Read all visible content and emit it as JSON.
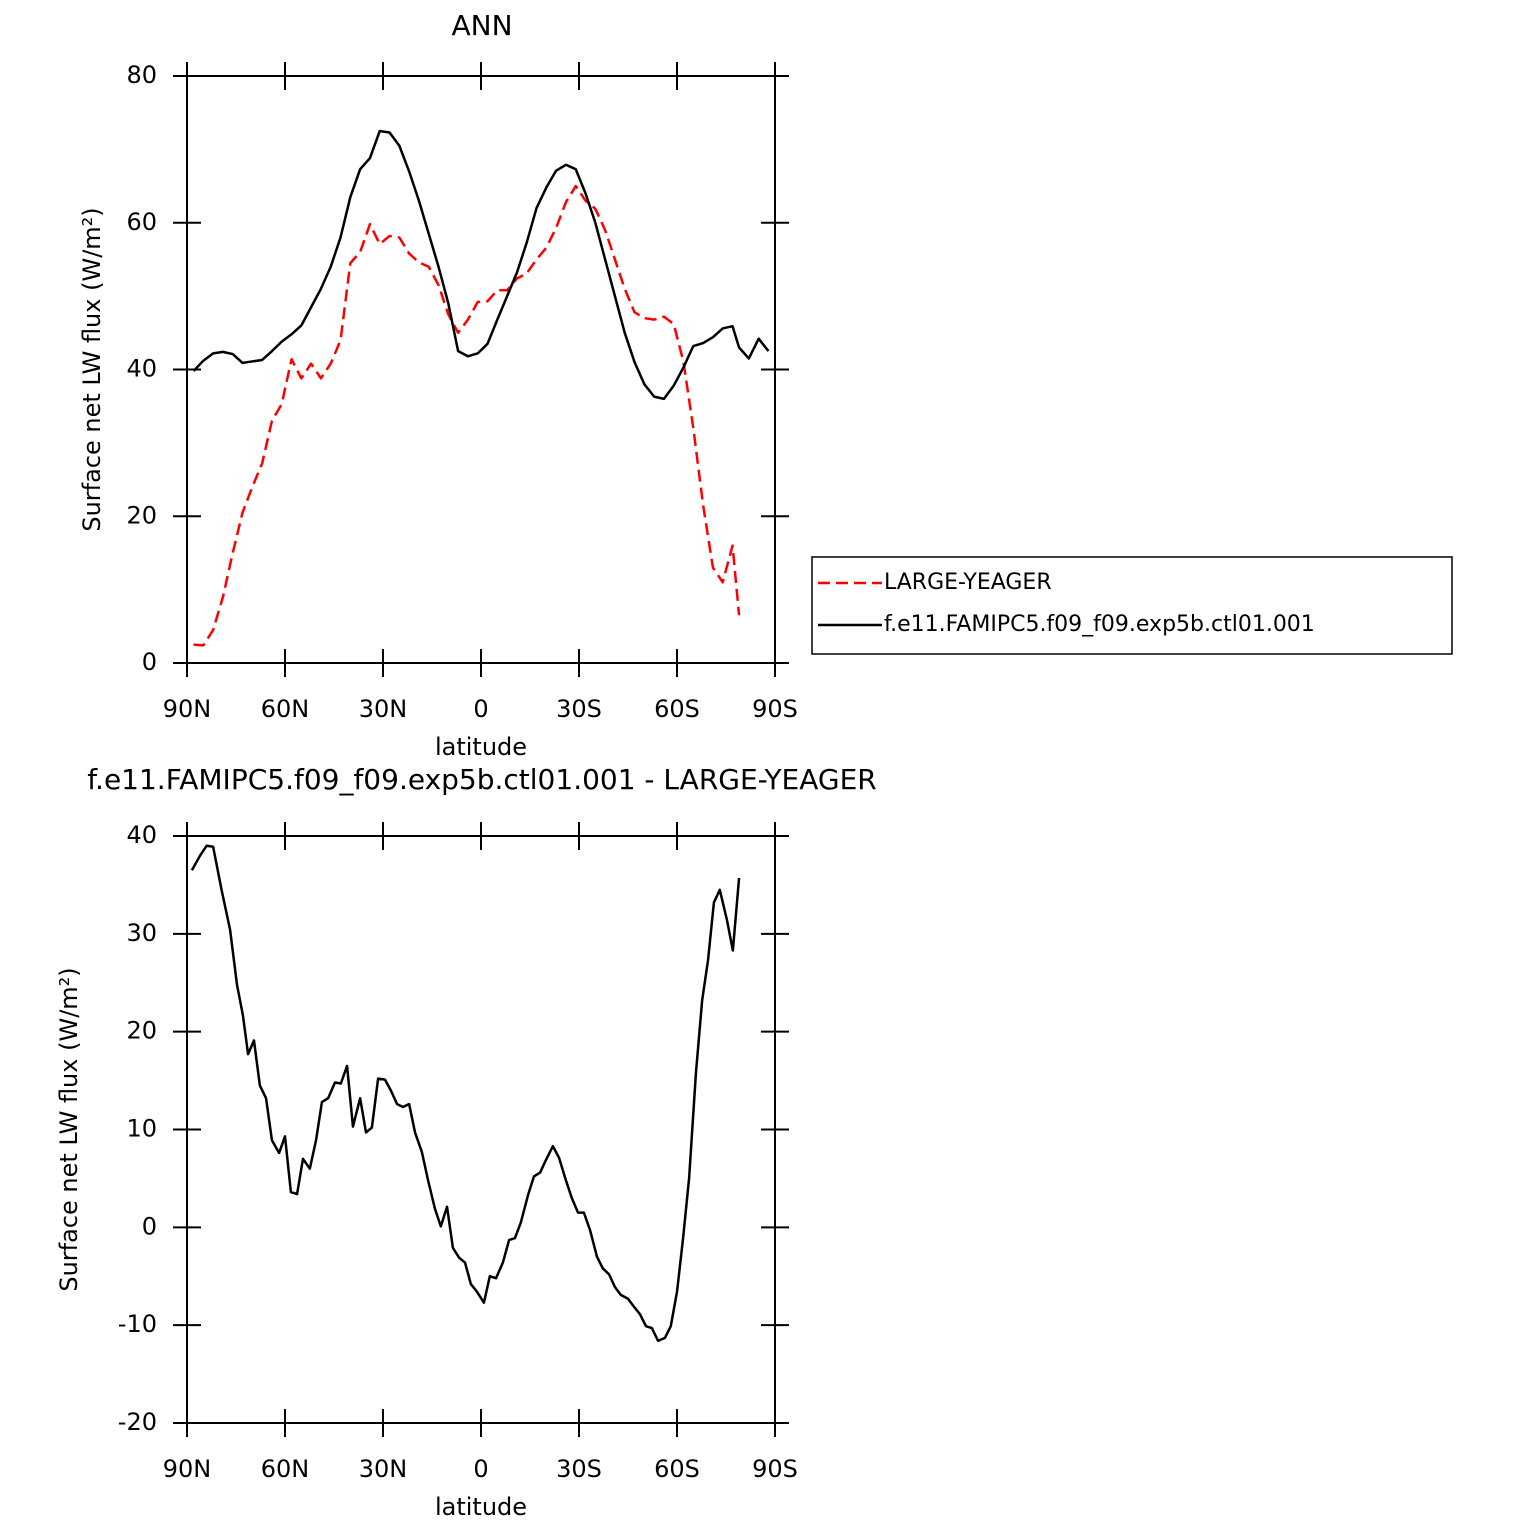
{
  "chart_data": [
    {
      "type": "line",
      "title": "ANN",
      "x_label": "latitude",
      "y_label": "Surface net LW flux (W/m²)",
      "x": [
        88,
        85,
        82,
        79,
        76,
        73,
        70,
        67,
        64,
        61,
        58,
        55,
        52,
        49,
        46,
        43,
        40,
        37,
        34,
        31,
        28,
        25,
        22,
        19,
        16,
        13,
        10,
        7,
        4,
        1,
        -2,
        -5,
        -8,
        -11,
        -14,
        -17,
        -20,
        -23,
        -26,
        -29,
        -32,
        -35,
        -38,
        -41,
        -44,
        -47,
        -50,
        -53,
        -56,
        -59,
        -62,
        -65,
        -68,
        -71,
        -74,
        -77,
        -79,
        -82,
        -85,
        -88
      ],
      "series": [
        {
          "name": "LARGE-YEAGER",
          "color": "#ff0000",
          "dash": "dashed",
          "values": [
            2.5,
            2.4,
            4.5,
            9,
            15,
            20.5,
            24,
            27.2,
            33,
            35.3,
            41.4,
            38.8,
            40.8,
            38.8,
            40.8,
            44,
            54.5,
            56,
            59.8,
            57.1,
            58.2,
            58,
            55.8,
            54.6,
            54,
            51.5,
            47.5,
            45,
            46.8,
            49.2,
            49.3,
            50.8,
            50.8,
            52.4,
            53.1,
            55,
            56.6,
            59.3,
            62.8,
            65,
            63,
            61.9,
            59,
            55,
            51,
            47.8,
            47,
            46.8,
            47.2,
            46.2,
            41,
            32,
            21.5,
            13,
            11,
            16,
            6.5,
            null,
            null,
            null
          ]
        },
        {
          "name": "f.e11.FAMIPC5.f09_f09.exp5b.ctl01.001",
          "color": "#000000",
          "dash": "solid",
          "values": [
            39.8,
            41.2,
            42.2,
            42.4,
            42.1,
            40.9,
            41.1,
            41.3,
            42.5,
            43.8,
            44.8,
            46,
            48.5,
            51,
            54,
            58,
            63.5,
            67.3,
            68.8,
            72.5,
            72.3,
            70.5,
            67,
            63,
            58.5,
            54,
            49,
            42.5,
            41.8,
            42.2,
            43.5,
            46.8,
            50,
            53.2,
            57.3,
            62,
            64.8,
            67.1,
            67.9,
            67.3,
            64,
            60,
            55,
            50,
            45,
            41,
            38,
            36.3,
            36,
            37.8,
            40.3,
            43.2,
            43.6,
            44.4,
            45.6,
            45.9,
            43,
            41.5,
            44.2,
            42.5
          ]
        }
      ],
      "xlim": [
        90,
        -90
      ],
      "xticks": [
        {
          "value": 90,
          "label": "90N"
        },
        {
          "value": 60,
          "label": "60N"
        },
        {
          "value": 30,
          "label": "30N"
        },
        0,
        {
          "value": -30,
          "label": "30S"
        },
        {
          "value": -60,
          "label": "60S"
        },
        {
          "value": -90,
          "label": "90S"
        }
      ],
      "ylim": [
        0,
        80
      ],
      "yticks": [
        0,
        20,
        40,
        60,
        80
      ]
    },
    {
      "type": "line",
      "title": "f.e11.FAMIPC5.f09_f09.exp5b.ctl01.001 - LARGE-YEAGER",
      "x_label": "latitude",
      "y_label": "Surface net LW flux (W/m²)",
      "x": [
        88.5,
        86,
        84,
        82,
        79.3,
        76.8,
        74.7,
        72.9,
        71.3,
        69.5,
        67.7,
        65.8,
        64,
        61.8,
        60,
        58.2,
        56.3,
        54.5,
        52.4,
        50.5,
        48.7,
        46.8,
        44.7,
        42.9,
        41,
        39.2,
        37,
        35.2,
        33.4,
        31.5,
        29.4,
        27.6,
        25.7,
        23.9,
        22,
        20.2,
        18.1,
        16.2,
        14.1,
        12.3,
        10.4,
        8.6,
        6.7,
        4.9,
        3.1,
        1.2,
        -0.9,
        -2.7,
        -4.6,
        -6.7,
        -8.6,
        -10.4,
        -12.2,
        -14.4,
        -16.2,
        -18.1,
        -19.9,
        -22,
        -23.9,
        -26,
        -27.8,
        -29.7,
        -31.5,
        -33.4,
        -35.5,
        -37.3,
        -39.2,
        -41,
        -42.8,
        -45,
        -46.8,
        -48.7,
        -50.5,
        -52.3,
        -54.2,
        -56.3,
        -58.1,
        -60,
        -61.8,
        -63.7,
        -65.8,
        -67.7,
        -69.5,
        -71.3,
        -73.1,
        -75.3,
        -77.1,
        -79
      ],
      "series": [
        {
          "color": "#000000",
          "dash": "solid",
          "values": [
            36.5,
            38,
            39,
            38.9,
            34.3,
            30.4,
            24.8,
            21.7,
            17.7,
            19.1,
            14.5,
            13.2,
            8.9,
            7.6,
            9.3,
            3.6,
            3.4,
            7,
            6,
            8.9,
            12.8,
            13.2,
            14.8,
            14.7,
            16.5,
            10.3,
            13.2,
            9.7,
            10.2,
            15.2,
            15.1,
            14,
            12.6,
            12.3,
            12.6,
            9.7,
            7.7,
            4.8,
            1.9,
            0.1,
            2.1,
            -2.1,
            -3.1,
            -3.6,
            -5.8,
            -6.6,
            -7.7,
            -5,
            -5.2,
            -3.6,
            -1.3,
            -1.1,
            0.5,
            3.3,
            5.2,
            5.6,
            6.9,
            8.3,
            7.1,
            4.8,
            3,
            1.5,
            1.5,
            -0.3,
            -3,
            -4.2,
            -4.8,
            -6.1,
            -6.9,
            -7.3,
            -8.1,
            -8.9,
            -10.1,
            -10.3,
            -11.6,
            -11.3,
            -10.1,
            -6.6,
            -1.3,
            5,
            15.8,
            23.2,
            27.3,
            33.2,
            34.5,
            31.4,
            28.3,
            35.7
          ]
        }
      ],
      "xlim": [
        90,
        -90
      ],
      "xticks": [
        {
          "value": 90,
          "label": "90N"
        },
        {
          "value": 60,
          "label": "60N"
        },
        {
          "value": 30,
          "label": "30N"
        },
        0,
        {
          "value": -30,
          "label": "30S"
        },
        {
          "value": -60,
          "label": "60S"
        },
        {
          "value": -90,
          "label": "90S"
        }
      ],
      "ylim": [
        -20,
        40
      ],
      "yticks": [
        -20,
        -10,
        0,
        10,
        20,
        30,
        40
      ]
    }
  ]
}
